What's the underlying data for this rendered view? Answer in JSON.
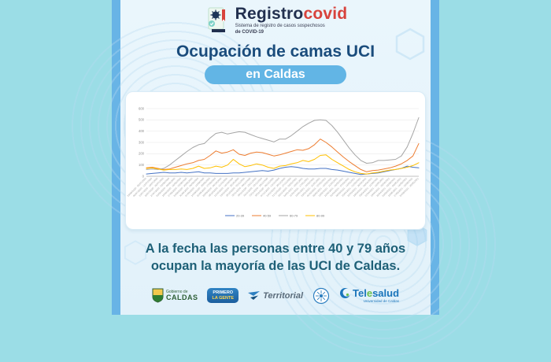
{
  "header": {
    "logo_title": "Registro",
    "logo_title_accent": "covid",
    "logo_subtitle_line1": "Sistema de registro de casos sospechosos",
    "logo_subtitle_line2": "de COVID-19"
  },
  "title": {
    "line1": "Ocupación de camas UCI",
    "pill": "en Caldas"
  },
  "message": {
    "line1": "A la fecha las personas entre 40 y 79 años",
    "line2": "ocupan la mayoría de las UCI de Caldas."
  },
  "footer": {
    "logos": [
      {
        "name": "gobernacion-de-caldas",
        "line1": "Gobierno de",
        "line2": "CALDAS"
      },
      {
        "name": "primero-la-gente",
        "line1": "PRIMERO",
        "line2": "LA GENTE"
      },
      {
        "name": "territorial",
        "label": "Territorial"
      },
      {
        "name": "universidad-de-caldas-seal"
      },
      {
        "name": "telesalud",
        "label_prefix": "Tel",
        "label_e": "e",
        "label_suffix": "salud",
        "sublabel": "Universidad de Caldas"
      }
    ]
  },
  "colors": {
    "outer_background": "#9bdde6",
    "panel_border": "#68b4e6",
    "panel_background": "#e8f4fb",
    "title_text": "#1a4c7c",
    "pill_background": "#62b5e5",
    "message_text": "#1e6077",
    "logo_navy": "#22304f",
    "logo_red": "#d8433c"
  },
  "chart_data": {
    "type": "line",
    "title": "",
    "xlabel": "",
    "ylabel": "",
    "ylim": [
      0,
      600
    ],
    "yticks": [
      0,
      100,
      200,
      300,
      400,
      500,
      600
    ],
    "grid": true,
    "legend_position": "bottom",
    "x": [
      "29/06/2020 - 05/07/2020",
      "06/07/2020 - 12/07/2020",
      "13/07/2020 - 19/07/2020",
      "20/07/2020 - 26/07/2020",
      "27/07/2020 - 02/08/2020",
      "03/08/2020 - 09/08/2020",
      "10/08/2020 - 16/08/2020",
      "17/08/2020 - 23/08/2020",
      "24/08/2020 - 30/08/2020",
      "31/08/2020 - 06/09/2020",
      "07/09/2020 - 13/09/2020",
      "14/09/2020 - 20/09/2020",
      "21/09/2020 - 27/09/2020",
      "28/09/2020 - 04/10/2020",
      "05/10/2020 - 11/10/2020",
      "12/10/2020 - 18/10/2020",
      "19/10/2020 - 25/10/2020",
      "26/10/2020 - 01/11/2020",
      "02/11/2020 - 08/11/2020",
      "09/11/2020 - 15/11/2020",
      "16/11/2020 - 22/11/2020",
      "23/11/2020 - 29/11/2020",
      "30/11/2020 - 06/12/2020",
      "07/12/2020 - 13/12/2020",
      "14/12/2020 - 20/12/2020",
      "21/12/2020 - 27/12/2020",
      "28/12/2020 - 03/01/2021",
      "04/01/2021 - 10/01/2021",
      "11/01/2021 - 17/01/2021",
      "18/01/2021 - 24/01/2021",
      "25/01/2021 - 31/01/2021",
      "01/02/2021 - 07/02/2021",
      "08/02/2021 - 14/02/2021",
      "15/02/2021 - 21/02/2021",
      "22/02/2021 - 28/02/2021",
      "01/03/2021 - 07/03/2021",
      "08/03/2021 - 14/03/2021",
      "15/03/2021 - 21/03/2021",
      "22/03/2021 - 28/03/2021",
      "29/03/2021 - 04/04/2021",
      "05/04/2021 - 11/04/2021",
      "12/04/2021 - 18/04/2021",
      "19/04/2021 - 25/04/2021",
      "26/04/2021 - 02/05/2021",
      "03/05/2021 - 09/05/2021",
      "10/05/2021 - 16/05/2021",
      "17/05/2021 - 23/05/2021",
      "24/05/2021 - 30/05/2021"
    ],
    "series": [
      {
        "name": "20-39",
        "color": "#4472c4",
        "values": [
          20,
          25,
          30,
          35,
          30,
          30,
          35,
          30,
          35,
          40,
          30,
          30,
          25,
          25,
          25,
          30,
          30,
          35,
          40,
          45,
          50,
          45,
          55,
          70,
          80,
          85,
          80,
          70,
          65,
          65,
          70,
          70,
          60,
          55,
          45,
          35,
          25,
          15,
          20,
          25,
          30,
          40,
          50,
          60,
          70,
          90,
          80,
          75
        ]
      },
      {
        "name": "40-59",
        "color": "#ed7d31",
        "values": [
          75,
          80,
          70,
          60,
          65,
          80,
          95,
          110,
          120,
          140,
          150,
          185,
          225,
          205,
          215,
          235,
          195,
          185,
          205,
          215,
          210,
          195,
          180,
          190,
          205,
          220,
          235,
          230,
          245,
          280,
          330,
          300,
          260,
          215,
          170,
          130,
          95,
          60,
          40,
          50,
          55,
          65,
          75,
          90,
          110,
          140,
          180,
          290
        ]
      },
      {
        "name": "60-79",
        "color": "#a5a5a5",
        "values": [
          60,
          65,
          60,
          70,
          100,
          140,
          180,
          220,
          255,
          280,
          290,
          340,
          380,
          390,
          375,
          385,
          395,
          390,
          370,
          350,
          335,
          320,
          305,
          330,
          330,
          360,
          400,
          440,
          470,
          495,
          500,
          495,
          450,
          390,
          320,
          250,
          190,
          140,
          115,
          120,
          140,
          140,
          145,
          150,
          180,
          260,
          380,
          520
        ]
      },
      {
        "name": "80-99",
        "color": "#ffc000",
        "values": [
          70,
          75,
          65,
          55,
          60,
          60,
          65,
          60,
          70,
          90,
          70,
          75,
          90,
          80,
          100,
          150,
          110,
          85,
          95,
          110,
          100,
          80,
          70,
          90,
          95,
          110,
          120,
          140,
          130,
          150,
          185,
          190,
          150,
          120,
          90,
          60,
          40,
          25,
          20,
          30,
          35,
          45,
          55,
          60,
          70,
          80,
          95,
          120
        ]
      }
    ]
  }
}
